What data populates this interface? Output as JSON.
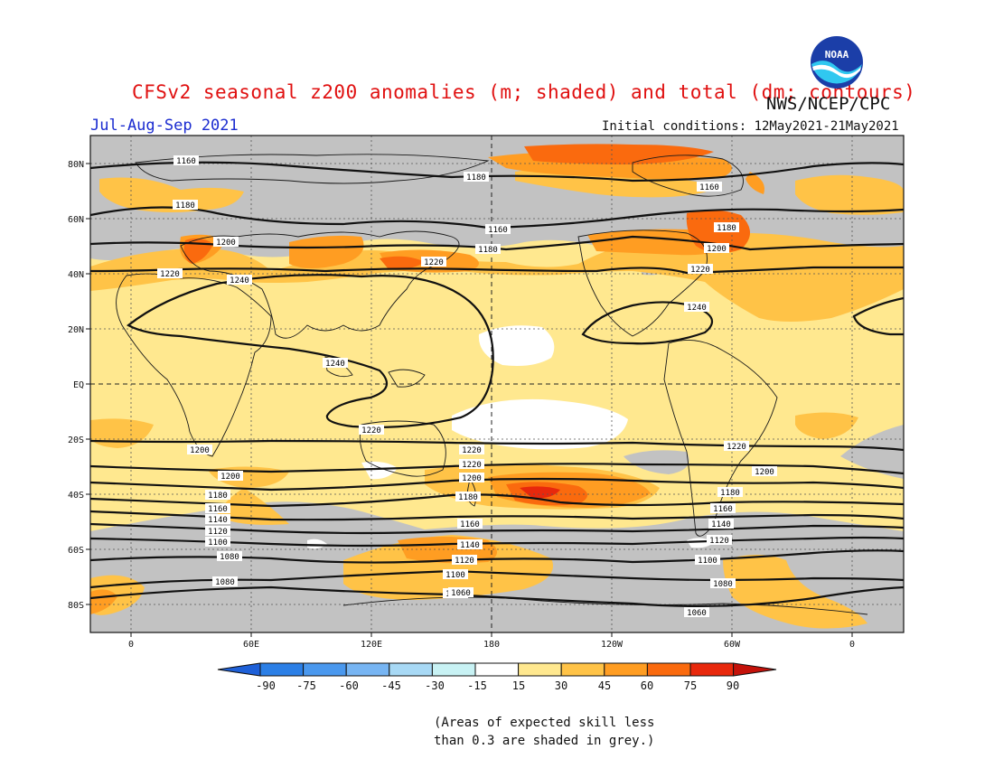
{
  "header": {
    "title": "CFSv2 seasonal z200 anomalies (m; shaded) and total (dm; contours)",
    "org": "NWS/NCEP/CPC",
    "logo_text": "NOAA",
    "period": "Jul-Aug-Sep 2021",
    "initial_conditions": "Initial conditions: 12May2021-21May2021"
  },
  "map": {
    "lat_labels": [
      "80N",
      "60N",
      "40N",
      "20N",
      "EQ",
      "20S",
      "40S",
      "60S",
      "80S"
    ],
    "lon_labels": [
      "0",
      "60E",
      "120E",
      "180",
      "120W",
      "60W",
      "0"
    ],
    "colors": {
      "mask_grey": "#c2c2c2",
      "a15": "#ffe88f",
      "a30": "#ffc347",
      "a45": "#ff9d22",
      "a60": "#fa6a0e",
      "a75": "#e8280c",
      "white": "#ffffff"
    },
    "contour_labels": [
      "1160",
      "1180",
      "1200",
      "1220",
      "1240",
      "1220",
      "1240",
      "1160",
      "1180",
      "1200",
      "1220",
      "1240",
      "1180",
      "1160",
      "1180",
      "1200",
      "1220",
      "1240",
      "1240",
      "1220",
      "1200",
      "1180",
      "1160",
      "1140",
      "1120",
      "1100",
      "1080",
      "1080",
      "1220",
      "1200",
      "1180",
      "1160",
      "1140",
      "1120",
      "1100",
      "1080",
      "1060",
      "1220",
      "1200",
      "1180",
      "1160",
      "1140",
      "1120",
      "1100",
      "1080",
      "1060"
    ]
  },
  "colorbar": {
    "ticks": [
      "-90",
      "-75",
      "-60",
      "-45",
      "-30",
      "-15",
      "15",
      "30",
      "45",
      "60",
      "75",
      "90"
    ],
    "colors": [
      "#1e60d8",
      "#2b7fe6",
      "#4a98ee",
      "#77b5f3",
      "#a8d9f5",
      "#c8f2f4",
      "#ffffff",
      "#ffe88f",
      "#ffc347",
      "#ff9d22",
      "#fa6a0e",
      "#e8280c",
      "#c4120a"
    ]
  },
  "note": {
    "line1": "(Areas of expected skill less",
    "line2": "than 0.3 are shaded in grey.)"
  }
}
